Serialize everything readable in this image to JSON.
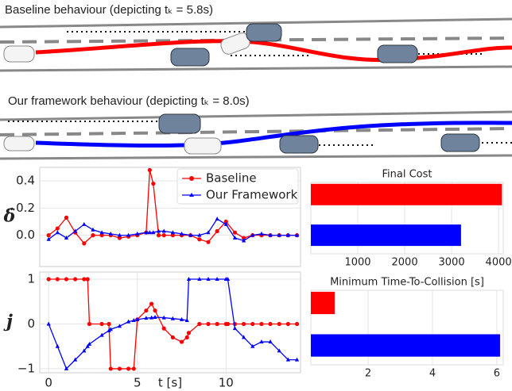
{
  "scenes": [
    {
      "caption": "Baseline behaviour (depicting tₖ = 5.8s)"
    },
    {
      "caption": "Our framework behaviour (depicting tₖ = 8.0s)"
    }
  ],
  "chart_data": [
    {
      "type": "line",
      "ylabel": "δ̇",
      "xlim": [
        -0.5,
        14.2
      ],
      "ylim": [
        -0.23,
        0.5
      ],
      "yticks": [
        {
          "value": 0,
          "label": "0.0"
        },
        0.2,
        0.4
      ],
      "grid": true,
      "legend": "upper right",
      "x": [
        0,
        0.5,
        1,
        1.5,
        2,
        2.5,
        3,
        3.5,
        4,
        4.5,
        5,
        5.5,
        5.7,
        5.9,
        6.2,
        6.5,
        7,
        7.5,
        8,
        8.5,
        9,
        9.5,
        10,
        10.5,
        11,
        11.5,
        12,
        12.5,
        13,
        13.5,
        14
      ],
      "series": [
        {
          "name": "Baseline",
          "color": "#ff0000",
          "marker": "circle",
          "values": [
            0,
            0.05,
            0.13,
            0.02,
            -0.06,
            0,
            0,
            0,
            -0.02,
            -0.01,
            0,
            0.02,
            0.48,
            0.38,
            0,
            0,
            0,
            0,
            0,
            -0.03,
            -0.05,
            0.03,
            0.1,
            0.02,
            -0.02,
            0,
            0,
            0,
            0,
            0,
            0
          ]
        },
        {
          "name": "Our Framework",
          "color": "#0000ff",
          "marker": "star",
          "values": [
            -0.03,
            0.02,
            -0.02,
            0.03,
            0.08,
            0.04,
            0.02,
            0.01,
            0,
            0,
            0.01,
            0.02,
            0.02,
            0.02,
            0.03,
            0.03,
            0.02,
            0.01,
            0,
            0,
            0.02,
            0.12,
            0.08,
            -0.02,
            -0.04,
            0,
            0.01,
            0,
            0,
            0,
            0
          ]
        }
      ]
    },
    {
      "type": "line",
      "ylabel": "j",
      "xlabel": "t [s]",
      "xlim": [
        -0.5,
        14.2
      ],
      "ylim": [
        -1.09,
        1.16
      ],
      "xticks": [
        0,
        5,
        10
      ],
      "yticks": [
        {
          "value": -1,
          "label": "−1"
        },
        0,
        1
      ],
      "grid": true,
      "x": [
        0,
        0.5,
        1,
        1.5,
        2,
        2.2,
        2.3,
        3,
        3.4,
        3.5,
        4,
        4.5,
        4.8,
        5,
        5.5,
        5.8,
        6,
        6.5,
        7,
        7.5,
        7.8,
        7.9,
        8.5,
        9,
        9.5,
        10,
        10.1,
        10.5,
        11,
        11.5,
        12,
        12.5,
        13,
        13.5,
        14
      ],
      "series": [
        {
          "color": "#ff0000",
          "marker": "circle",
          "values": [
            1,
            1,
            1,
            1,
            1,
            1,
            0,
            0,
            0,
            -1,
            -1,
            -1,
            -1,
            0.1,
            0.3,
            0.45,
            0.3,
            -0.1,
            -0.3,
            -0.4,
            -0.3,
            -0.2,
            0,
            0,
            0,
            0,
            0,
            0,
            0,
            0,
            0,
            0,
            0,
            0,
            0
          ]
        },
        {
          "color": "#0000ff",
          "marker": "star",
          "values": [
            0,
            -0.5,
            -1,
            -0.8,
            -0.6,
            -0.5,
            -0.45,
            -0.25,
            -0.15,
            -0.12,
            -0.05,
            0.05,
            0.08,
            0.1,
            0.13,
            0.14,
            0.15,
            0.14,
            0.12,
            0.1,
            0.08,
            1,
            1,
            1,
            1,
            1,
            1,
            -0.1,
            -0.3,
            -0.5,
            -0.4,
            -0.4,
            -0.6,
            -0.8,
            -0.8
          ]
        }
      ]
    },
    {
      "type": "barh",
      "title": "Final Cost",
      "categories": [
        null,
        null
      ],
      "values": [
        4070,
        3200
      ],
      "colors": [
        "#ff0000",
        "#0000ff"
      ],
      "xlim": [
        0,
        4100
      ],
      "xticks": [
        1000,
        2000,
        3000,
        4000
      ],
      "grid": true
    },
    {
      "type": "barh",
      "title": "Minimum Time-To-Collision [s]",
      "categories": [
        null,
        null
      ],
      "values": [
        0.96,
        6.1
      ],
      "colors": [
        "#ff0000",
        "#0000ff"
      ],
      "xlim": [
        0.22,
        6.2
      ],
      "xticks": [
        2,
        4,
        6
      ],
      "grid": true
    }
  ]
}
